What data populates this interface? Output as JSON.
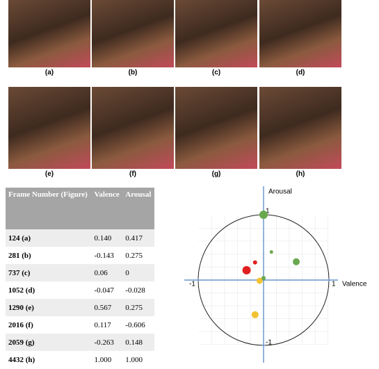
{
  "figure": {
    "panels": [
      "(a)",
      "(b)",
      "(c)",
      "(d)",
      "(e)",
      "(f)",
      "(g)",
      "(h)"
    ]
  },
  "table": {
    "header": [
      "Frame Number (Figure)",
      "Valence",
      "Arousal"
    ],
    "rows": [
      [
        "124 (a)",
        "0.140",
        "0.417"
      ],
      [
        "281 (b)",
        "-0.143",
        "0.275"
      ],
      [
        "737 (c)",
        "0.06",
        "0"
      ],
      [
        "1052 (d)",
        "-0.047",
        "-0.028"
      ],
      [
        "1290 (e)",
        "0.567",
        "0.275"
      ],
      [
        "2016 (f)",
        "0.117",
        "-0.606"
      ],
      [
        "2059 (g)",
        "-0.263",
        "0.148"
      ],
      [
        "4432 (h)",
        "1.000",
        "1.000"
      ]
    ]
  },
  "chart_data": {
    "type": "scatter",
    "x_label": "Valence",
    "y_label": "Arousal",
    "xlim": [
      -1,
      1
    ],
    "ylim": [
      -1,
      1
    ],
    "xticks": [
      -1,
      1
    ],
    "yticks": [
      -1,
      1
    ],
    "x": [
      0,
      0.12,
      0.5,
      -0.13,
      -0.26,
      -0.06,
      0,
      -0.13
    ],
    "values": [
      1,
      0.43,
      0.28,
      0.27,
      0.15,
      -0.01,
      0.03,
      -0.53
    ],
    "sizes": [
      6,
      2.5,
      5,
      3,
      6,
      4.5,
      3,
      5
    ],
    "colors": [
      "#6aa84f",
      "#6aa84f",
      "#6aa84f",
      "#e02020",
      "#e02020",
      "#f1c232",
      "#6aa84f",
      "#f1c232"
    ]
  }
}
